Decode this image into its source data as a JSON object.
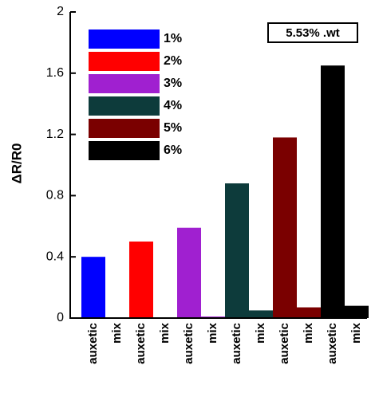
{
  "chart_data": {
    "type": "bar",
    "y_label": "ΔR/R0",
    "annotation": "5.53% .wt",
    "categories": [
      "auxetic",
      "mix",
      "auxetic",
      "mix",
      "auxetic",
      "mix",
      "auxetic",
      "mix",
      "auxetic",
      "mix",
      "auxetic",
      "mix"
    ],
    "values": [
      0.4,
      0,
      0.5,
      0,
      0.59,
      0.01,
      0.88,
      0.05,
      1.18,
      0.07,
      1.65,
      0.08
    ],
    "colors": [
      "#0000ff",
      "#0000ff",
      "#ff0000",
      "#ff0000",
      "#a020d0",
      "#a020d0",
      "#0d3b3b",
      "#0d3b3b",
      "#7a0000",
      "#7a0000",
      "#000000",
      "#000000"
    ],
    "legend": [
      {
        "name": "1%",
        "color": "#0000ff"
      },
      {
        "name": "2%",
        "color": "#ff0000"
      },
      {
        "name": "3%",
        "color": "#a020d0"
      },
      {
        "name": "4%",
        "color": "#0d3b3b"
      },
      {
        "name": "5%",
        "color": "#7a0000"
      },
      {
        "name": "6%",
        "color": "#000000"
      }
    ],
    "ylim": [
      0,
      2
    ],
    "yticks": [
      0,
      0.4,
      0.8,
      1.2,
      1.6,
      2
    ]
  }
}
